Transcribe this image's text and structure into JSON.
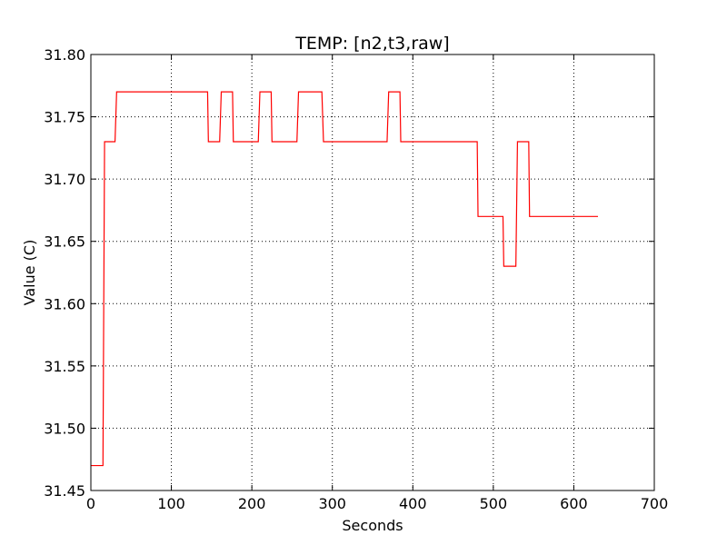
{
  "chart_data": {
    "type": "line",
    "title": "TEMP: [n2,t3,raw]",
    "xlabel": "Seconds",
    "ylabel": "Value (C)",
    "xlim": [
      0,
      700
    ],
    "ylim": [
      31.45,
      31.8
    ],
    "x_ticks": [
      0,
      100,
      200,
      300,
      400,
      500,
      600,
      700
    ],
    "y_ticks": [
      31.45,
      31.5,
      31.55,
      31.6,
      31.65,
      31.7,
      31.75,
      31.8
    ],
    "x_tick_labels": [
      "0",
      "100",
      "200",
      "300",
      "400",
      "500",
      "600",
      "700"
    ],
    "y_tick_labels": [
      "31.45",
      "31.50",
      "31.55",
      "31.60",
      "31.65",
      "31.70",
      "31.75",
      "31.80"
    ],
    "grid": true,
    "colors": {
      "series": "#ff0000",
      "grid": "#000000",
      "axes": "#000000"
    },
    "series": [
      {
        "values": [
          [
            0,
            31.47
          ],
          [
            15,
            31.47
          ],
          [
            17,
            31.73
          ],
          [
            30,
            31.73
          ],
          [
            32,
            31.77
          ],
          [
            145,
            31.77
          ],
          [
            146,
            31.73
          ],
          [
            160,
            31.73
          ],
          [
            162,
            31.77
          ],
          [
            176,
            31.77
          ],
          [
            177,
            31.73
          ],
          [
            208,
            31.73
          ],
          [
            210,
            31.77
          ],
          [
            224,
            31.77
          ],
          [
            225,
            31.73
          ],
          [
            256,
            31.73
          ],
          [
            258,
            31.77
          ],
          [
            287,
            31.77
          ],
          [
            289,
            31.73
          ],
          [
            368,
            31.73
          ],
          [
            370,
            31.77
          ],
          [
            384,
            31.77
          ],
          [
            385,
            31.73
          ],
          [
            480,
            31.73
          ],
          [
            481,
            31.67
          ],
          [
            512,
            31.67
          ],
          [
            513,
            31.63
          ],
          [
            528,
            31.63
          ],
          [
            530,
            31.73
          ],
          [
            544,
            31.73
          ],
          [
            545,
            31.67
          ],
          [
            630,
            31.67
          ]
        ]
      }
    ]
  }
}
